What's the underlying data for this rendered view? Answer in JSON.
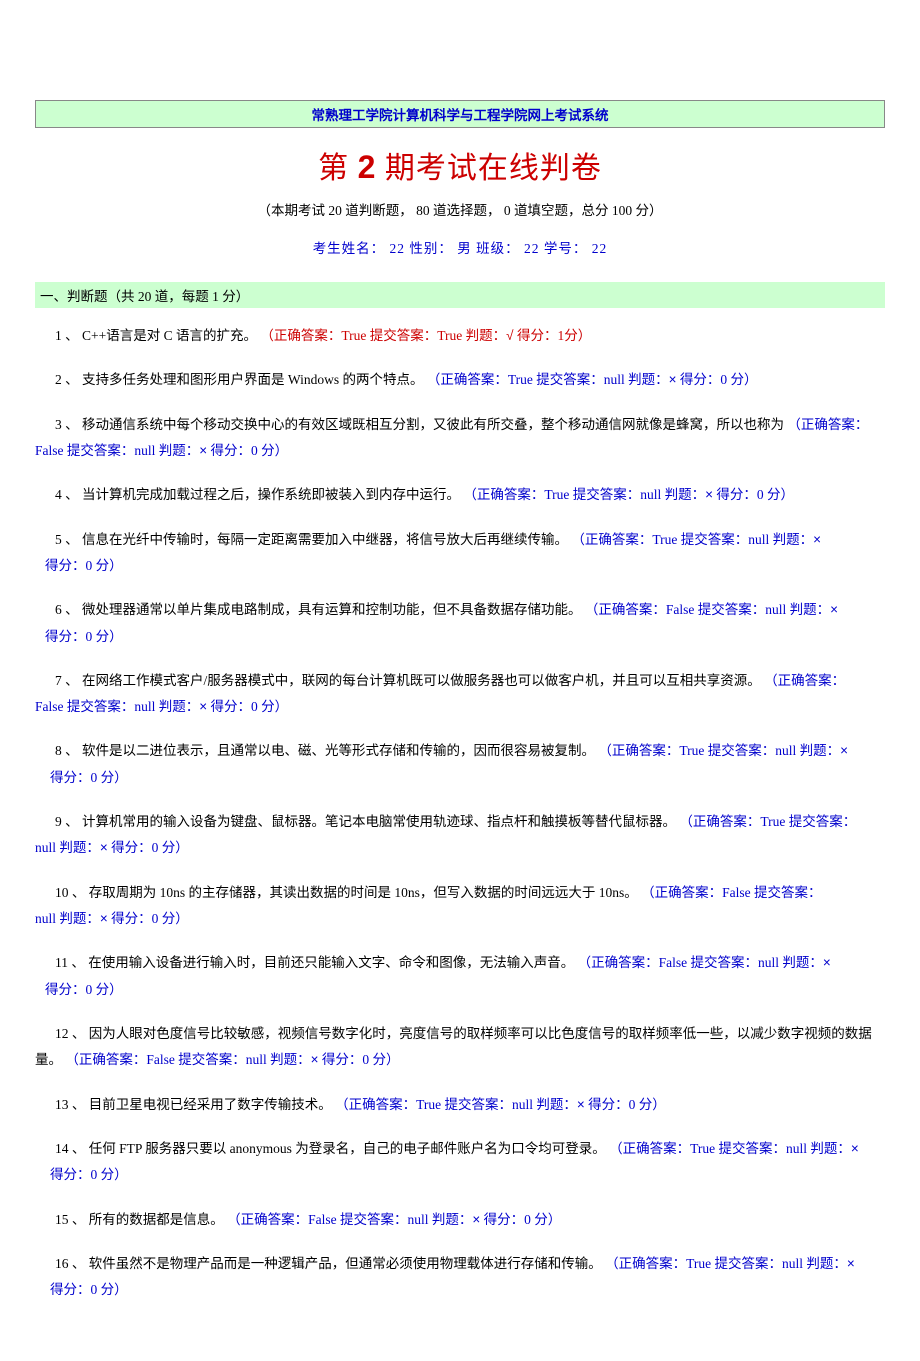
{
  "colors": {
    "banner_bg": "#ccffd0",
    "banner_border": "#888888",
    "link_blue": "#0000cc",
    "error_red": "#cc0000",
    "text_black": "#000000",
    "page_bg": "#ffffff"
  },
  "typography": {
    "body_family": "SimSun, 宋体, serif",
    "body_size_pt": 10,
    "title_size_pt": 22,
    "line_height": 1.95
  },
  "header": {
    "banner": "常熟理工学院计算机科学与工程学院网上考试系统",
    "title_prefix": "第 ",
    "title_num": "2",
    "title_suffix": " 期考试在线判卷",
    "subtitle": "（本期考试 20 道判断题，  80 道选择题，  0 道填空题，总分 100 分）",
    "student_info": "考生姓名：  22    性别：  男    班级：  22    学号：  22"
  },
  "section_a": {
    "heading": "一、判断题（共 20 道，每题 1 分）"
  },
  "symbols": {
    "cross": "×",
    "check": "√"
  },
  "labels": {
    "correct_answer": "正确答案：",
    "submitted": "提交答案：",
    "judge": "判题：",
    "score": "得分：",
    "score_unit": "分",
    "point_unit": " 分"
  },
  "questions": [
    {
      "num": "1",
      "text": "C++语言是对 C 语言的扩充。",
      "correct": "True",
      "submitted": "True",
      "is_right": true,
      "score": "1"
    },
    {
      "num": "2",
      "text": "支持多任务处理和图形用户界面是 Windows 的两个特点。",
      "correct": "True",
      "submitted": "null",
      "is_right": false,
      "score": "0"
    },
    {
      "num": "3",
      "text": "移动通信系统中每个移动交换中心的有效区域既相互分割，又彼此有所交叠，整个移动通信网就像是蜂窝，所以也称为",
      "correct": "False",
      "submitted": "null",
      "is_right": false,
      "score": "0",
      "wrap_after_text": true
    },
    {
      "num": "4",
      "text": "当计算机完成加载过程之后，操作系统即被装入到内存中运行。",
      "correct": "True",
      "submitted": "null",
      "is_right": false,
      "score": "0"
    },
    {
      "num": "5",
      "text": "信息在光纤中传输时，每隔一定距离需要加入中继器，将信号放大后再继续传输。",
      "correct": "True",
      "submitted": "null",
      "is_right": false,
      "score": "0",
      "wrap_before_score": true
    },
    {
      "num": "6",
      "text": "微处理器通常以单片集成电路制成，具有运算和控制功能，但不具备数据存储功能。",
      "correct": "False",
      "submitted": "null",
      "is_right": false,
      "score": "0",
      "wrap_before_score": true
    },
    {
      "num": "7",
      "text": "在网络工作模式客户/服务器模式中，联网的每台计算机既可以做服务器也可以做客户机，并且可以互相共享资源。",
      "correct": "False",
      "submitted": "null",
      "is_right": false,
      "score": "0",
      "wrap_after_text": true
    },
    {
      "num": "8",
      "text": "软件是以二进位表示，且通常以电、磁、光等形式存储和传输的，因而很容易被复制。",
      "correct": "True",
      "submitted": "null",
      "is_right": false,
      "score": "0",
      "wrap_before_judge": true
    },
    {
      "num": "9",
      "text": "计算机常用的输入设备为键盘、鼠标器。笔记本电脑常使用轨迹球、指点杆和触摸板等替代鼠标器。",
      "correct": "True",
      "submitted": "null",
      "is_right": false,
      "score": "0",
      "wrap_after_submitted": true
    },
    {
      "num": "10",
      "text": "存取周期为 10ns 的主存储器，其读出数据的时间是 10ns，但写入数据的时间远远大于 10ns。",
      "correct": "False",
      "submitted": "null",
      "is_right": false,
      "score": "0",
      "wrap_after_submitted": true
    },
    {
      "num": "11",
      "text": "在使用输入设备进行输入时，目前还只能输入文字、命令和图像，无法输入声音。",
      "correct": "False",
      "submitted": "null",
      "is_right": false,
      "score": "0",
      "wrap_before_score": true
    },
    {
      "num": "12",
      "text": "因为人眼对色度信号比较敏感，视频信号数字化时，亮度信号的取样频率可以比色度信号的取样频率低一些，以减少数字视频的数据量。",
      "correct": "False",
      "submitted": "null",
      "is_right": false,
      "score": "0",
      "wrap_after_text_tail": true
    },
    {
      "num": "13",
      "text": "目前卫星电视已经采用了数字传输技术。",
      "correct": "True",
      "submitted": "null",
      "is_right": false,
      "score": "0"
    },
    {
      "num": "14",
      "text": "任何 FTP 服务器只要以 anonymous 为登录名，自己的电子邮件账户名为口令均可登录。",
      "correct": "True",
      "submitted": "null",
      "is_right": false,
      "score": "0",
      "wrap_before_judge": true
    },
    {
      "num": "15",
      "text": "所有的数据都是信息。",
      "correct": "False",
      "submitted": "null",
      "is_right": false,
      "score": "0"
    },
    {
      "num": "16",
      "text": "软件虽然不是物理产品而是一种逻辑产品，但通常必须使用物理载体进行存储和传输。",
      "correct": "True",
      "submitted": "null",
      "is_right": false,
      "score": "0",
      "wrap_before_judge": true
    }
  ]
}
